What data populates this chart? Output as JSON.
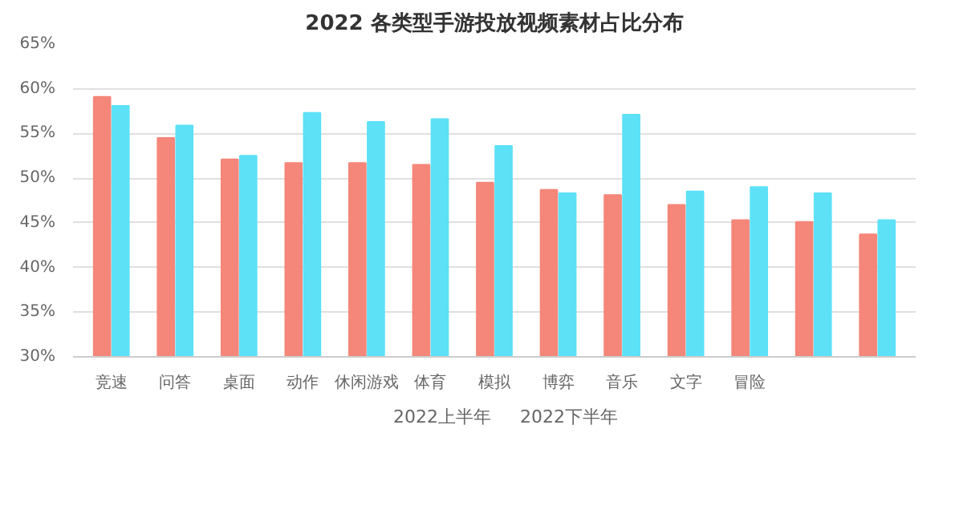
{
  "chart_data": {
    "type": "bar",
    "title": "2022 各类型手游投放视频素材占比分布",
    "categories": [
      "竞速",
      "问答",
      "桌面",
      "动作",
      "休闲游戏",
      "体育",
      "模拟",
      "博弈",
      "音乐",
      "文字",
      "冒险",
      null,
      null
    ],
    "series": [
      {
        "name": "2022上半年",
        "color": "#f4877a",
        "values": [
          59.1,
          54.5,
          52.1,
          51.7,
          51.7,
          51.5,
          49.5,
          48.7,
          48.1,
          47.0,
          45.3,
          45.1,
          43.7
        ]
      },
      {
        "name": "2022下半年",
        "color": "#5ce1f7",
        "values": [
          58.1,
          55.9,
          52.5,
          57.3,
          56.3,
          56.6,
          53.6,
          48.3,
          57.1,
          48.5,
          49.0,
          48.3,
          45.3
        ]
      }
    ],
    "ylim": [
      30,
      65
    ],
    "yticks": [
      {
        "value": 30,
        "label": "30%"
      },
      {
        "value": 35,
        "label": "35%"
      },
      {
        "value": 40,
        "label": "40%"
      },
      {
        "value": 45,
        "label": "45%"
      },
      {
        "value": 50,
        "label": "50%"
      },
      {
        "value": 55,
        "label": "55%"
      },
      {
        "value": 60,
        "label": "60%"
      },
      {
        "value": 65,
        "label": "65%"
      }
    ],
    "grid": "y",
    "legend": "bottom"
  }
}
